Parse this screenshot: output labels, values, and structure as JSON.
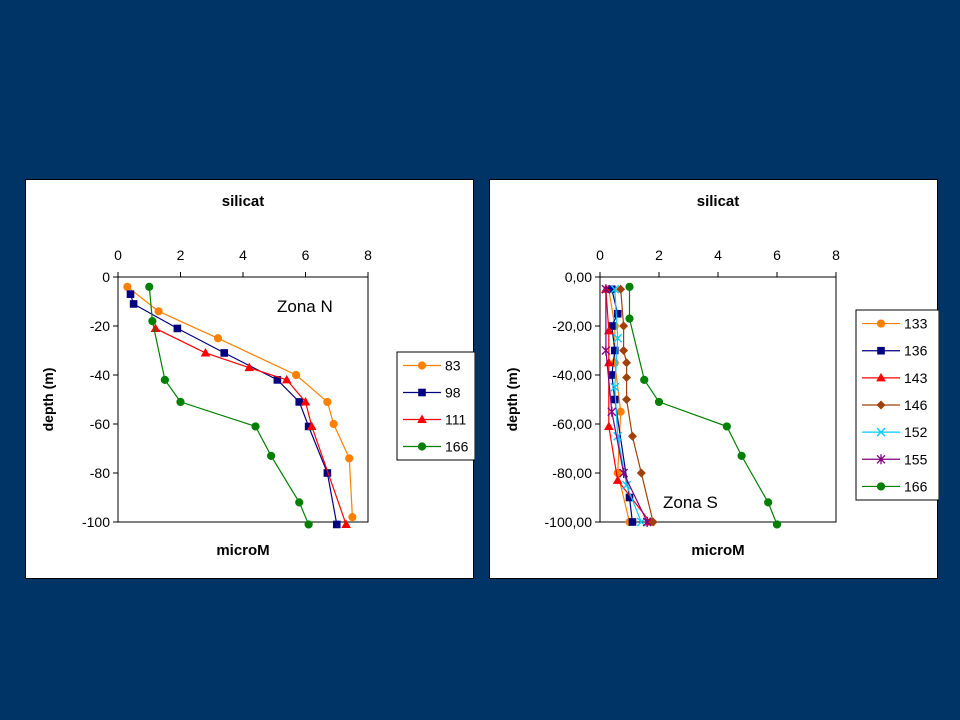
{
  "slide": {
    "background": "#003366"
  },
  "chart_data": [
    {
      "type": "line",
      "title": "silicat",
      "xlabel": "microM",
      "ylabel": "depth (m)",
      "annotation": "Zona N",
      "xlim": [
        0,
        8
      ],
      "ylim": [
        -100,
        0
      ],
      "x_ticks": [
        "0",
        "2",
        "4",
        "6",
        "8"
      ],
      "y_ticks": [
        "0",
        "-20",
        "-40",
        "-60",
        "-80",
        "-100"
      ],
      "legend_position": "right",
      "series": [
        {
          "name": "83",
          "color": "#FF8000",
          "marker": "circle",
          "points": [
            [
              0.3,
              -4
            ],
            [
              1.3,
              -14
            ],
            [
              3.2,
              -25
            ],
            [
              5.7,
              -40
            ],
            [
              6.7,
              -51
            ],
            [
              6.9,
              -60
            ],
            [
              7.4,
              -74
            ],
            [
              7.5,
              -98
            ]
          ]
        },
        {
          "name": "98",
          "color": "#000080",
          "marker": "square",
          "points": [
            [
              0.4,
              -7
            ],
            [
              0.5,
              -11
            ],
            [
              1.9,
              -21
            ],
            [
              3.4,
              -31
            ],
            [
              5.1,
              -42
            ],
            [
              5.8,
              -51
            ],
            [
              6.1,
              -61
            ],
            [
              6.7,
              -80
            ],
            [
              7.0,
              -101
            ]
          ]
        },
        {
          "name": "111",
          "color": "#FF0000",
          "marker": "triangle",
          "points": [
            [
              1.2,
              -21
            ],
            [
              2.8,
              -31
            ],
            [
              4.2,
              -37
            ],
            [
              5.4,
              -42
            ],
            [
              6.0,
              -51
            ],
            [
              6.2,
              -61
            ],
            [
              7.3,
              -101
            ]
          ]
        },
        {
          "name": "166",
          "color": "#008000",
          "marker": "circle",
          "points": [
            [
              1.0,
              -4
            ],
            [
              1.1,
              -18
            ],
            [
              1.5,
              -42
            ],
            [
              2.0,
              -51
            ],
            [
              4.4,
              -61
            ],
            [
              4.9,
              -73
            ],
            [
              5.8,
              -92
            ],
            [
              6.1,
              -101
            ]
          ]
        }
      ]
    },
    {
      "type": "line",
      "title": "silicat",
      "xlabel": "microM",
      "ylabel": "depth (m)",
      "annotation": "Zona S",
      "xlim": [
        0,
        8
      ],
      "ylim": [
        -100,
        0
      ],
      "x_ticks": [
        "0",
        "2",
        "4",
        "6",
        "8"
      ],
      "y_ticks": [
        "0,00",
        "-20,00",
        "-40,00",
        "-60,00",
        "-80,00",
        "-100,00"
      ],
      "legend_position": "right",
      "series": [
        {
          "name": "133",
          "color": "#FF8000",
          "marker": "circle",
          "points": [
            [
              0.3,
              -5
            ],
            [
              0.5,
              -20
            ],
            [
              0.5,
              -35
            ],
            [
              0.7,
              -55
            ],
            [
              0.6,
              -80
            ],
            [
              1.0,
              -100
            ]
          ]
        },
        {
          "name": "136",
          "color": "#000080",
          "marker": "square",
          "points": [
            [
              0.4,
              -5
            ],
            [
              0.6,
              -15
            ],
            [
              0.4,
              -20
            ],
            [
              0.5,
              -30
            ],
            [
              0.4,
              -40
            ],
            [
              0.5,
              -50
            ],
            [
              1.0,
              -90
            ],
            [
              1.1,
              -100
            ]
          ]
        },
        {
          "name": "143",
          "color": "#FF0000",
          "marker": "triangle",
          "points": [
            [
              0.2,
              -5
            ],
            [
              0.3,
              -22
            ],
            [
              0.3,
              -35
            ],
            [
              0.3,
              -61
            ],
            [
              0.6,
              -83
            ],
            [
              1.7,
              -100
            ]
          ]
        },
        {
          "name": "146",
          "color": "#A0400A",
          "marker": "diamond",
          "points": [
            [
              0.7,
              -5
            ],
            [
              0.8,
              -20
            ],
            [
              0.8,
              -30
            ],
            [
              0.9,
              -35
            ],
            [
              0.9,
              -41
            ],
            [
              0.9,
              -50
            ],
            [
              1.1,
              -65
            ],
            [
              1.4,
              -80
            ],
            [
              1.8,
              -100
            ]
          ]
        },
        {
          "name": "152",
          "color": "#00CCFF",
          "marker": "x",
          "points": [
            [
              0.5,
              -5
            ],
            [
              0.6,
              -25
            ],
            [
              0.5,
              -45
            ],
            [
              0.6,
              -65
            ],
            [
              0.9,
              -85
            ],
            [
              1.4,
              -100
            ]
          ]
        },
        {
          "name": "155",
          "color": "#800080",
          "marker": "star",
          "points": [
            [
              0.2,
              -5
            ],
            [
              0.2,
              -30
            ],
            [
              0.4,
              -55
            ],
            [
              0.8,
              -80
            ],
            [
              1.6,
              -100
            ]
          ]
        },
        {
          "name": "166",
          "color": "#008000",
          "marker": "circle",
          "points": [
            [
              1.0,
              -4
            ],
            [
              1.0,
              -17
            ],
            [
              1.5,
              -42
            ],
            [
              2.0,
              -51
            ],
            [
              4.3,
              -61
            ],
            [
              4.8,
              -73
            ],
            [
              5.7,
              -92
            ],
            [
              6.0,
              -101
            ]
          ]
        }
      ]
    }
  ]
}
